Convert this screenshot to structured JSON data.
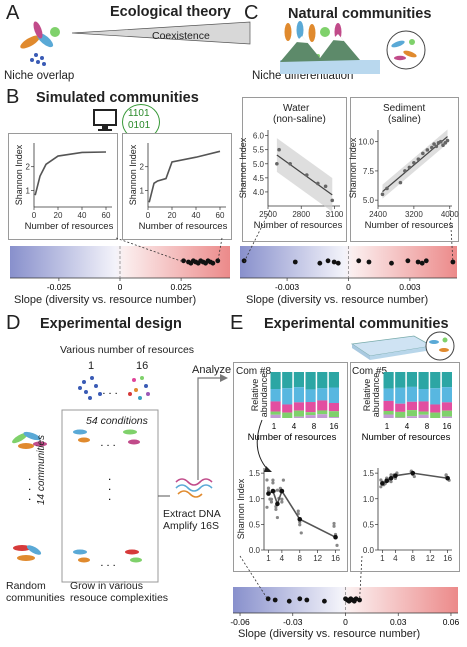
{
  "panelA": {
    "label": "A",
    "title": "Ecological theory",
    "left_caption": "Niche overlap",
    "middle_caption": "Coexistence",
    "right_caption": "Niche differentiation"
  },
  "panelB": {
    "label": "B",
    "title": "Simulated communities",
    "binary_line1": "1101",
    "binary_line2": "0101",
    "ylabel": "Shannon Index",
    "xlabel": "Number of resources",
    "slope_label": "Slope (diversity vs. resource number)"
  },
  "panelC": {
    "label": "C",
    "title": "Natural communities",
    "water_title1": "Water",
    "water_title2": "(non-saline)",
    "sediment_title1": "Sediment",
    "sediment_title2": "(saline)",
    "ylabel": "Shannon Index",
    "xlabel": "Number of resources",
    "slope_label": "Slope (diversity vs. resource number)"
  },
  "panelD": {
    "label": "D",
    "title": "Experimental design",
    "resources_caption": "Various number of resources",
    "res_min": "1",
    "res_max": "16",
    "conditions": "54 conditions",
    "communities": "14 communities",
    "dots": "...",
    "random1": "Random",
    "random2": "communities",
    "grow1": "Grow in various",
    "grow2": "resouce complexities",
    "extract1": "Extract DNA",
    "extract2": "Amplify 16S",
    "analyze": "Analyze"
  },
  "panelE": {
    "label": "E",
    "title": "Experimental communities",
    "com8": "Com #8",
    "com5": "Com #5",
    "rel_abund1": "Relative",
    "rel_abund2": "abundance",
    "xlabel": "Number of resources",
    "ylabel": "Shannon Index",
    "slope_label": "Slope (diversity vs. resource number)"
  },
  "chart_data": [
    {
      "id": "B-sim-1",
      "type": "line",
      "xlabel": "Number of resources",
      "ylabel": "Shannon Index",
      "x": [
        1,
        5,
        10,
        20,
        40,
        60
      ],
      "y": [
        0.8,
        1.6,
        2.1,
        2.45,
        2.6,
        2.62
      ],
      "xticks": [
        "0",
        "20",
        "40",
        "60"
      ],
      "yticks": [
        "1",
        "2"
      ],
      "xlim": [
        0,
        65
      ],
      "ylim": [
        0.3,
        3
      ]
    },
    {
      "id": "B-sim-2",
      "type": "line",
      "xlabel": "Number of resources",
      "ylabel": "Shannon Index",
      "x": [
        1,
        5,
        8,
        15,
        20,
        40,
        60
      ],
      "y": [
        0.5,
        1.3,
        1.4,
        1.5,
        2.2,
        2.4,
        2.65
      ],
      "xticks": [
        "0",
        "20",
        "40",
        "60"
      ],
      "yticks": [
        "1",
        "2"
      ],
      "xlim": [
        0,
        65
      ],
      "ylim": [
        0.3,
        3
      ]
    },
    {
      "id": "B-slope",
      "type": "scatter",
      "xlabel": "Slope (diversity vs. resource number)",
      "xticks": [
        "-0.025",
        "0",
        "0.025"
      ],
      "xlim": [
        -0.045,
        0.045
      ],
      "x": [
        0.026,
        0.028,
        0.029,
        0.03,
        0.031,
        0.032,
        0.033,
        0.034,
        0.035,
        0.036,
        0.037,
        0.038,
        0.04
      ]
    },
    {
      "id": "C-water",
      "type": "scatter",
      "title": "Water (non-saline)",
      "xlabel": "Number of resources",
      "ylabel": "Shannon Index",
      "x": [
        2580,
        2600,
        2700,
        2850,
        2950,
        3020,
        3080
      ],
      "y": [
        5.0,
        5.5,
        5.0,
        4.6,
        4.3,
        4.2,
        3.7
      ],
      "xticks": [
        "2500",
        "2800",
        "3100"
      ],
      "yticks": [
        "4.0",
        "4.5",
        "5.0",
        "5.5",
        "6.0"
      ],
      "xlim": [
        2500,
        3150
      ],
      "ylim": [
        3.5,
        6.2
      ]
    },
    {
      "id": "C-sediment",
      "type": "scatter",
      "title": "Sediment (saline)",
      "xlabel": "Number of resources",
      "ylabel": "Shannon Index",
      "x": [
        2500,
        2600,
        2900,
        3000,
        3100,
        3200,
        3300,
        3400,
        3500,
        3600,
        3650,
        3700,
        3750,
        3800,
        3850,
        3900,
        3950
      ],
      "y": [
        5.5,
        6.0,
        6.5,
        7.5,
        7.8,
        8.2,
        8.5,
        9.0,
        9.3,
        9.5,
        9.8,
        9.6,
        9.9,
        10.0,
        9.7,
        9.9,
        10.1
      ],
      "xticks": [
        "2400",
        "3200",
        "4000"
      ],
      "yticks": [
        "5.0",
        "7.5",
        "10.0"
      ],
      "xlim": [
        2400,
        4050
      ],
      "ylim": [
        4.5,
        11
      ]
    },
    {
      "id": "C-slope",
      "type": "scatter",
      "xlabel": "Slope (diversity vs. resource number)",
      "xticks": [
        "-0.003",
        "0",
        "0.003"
      ],
      "xlim": [
        -0.0053,
        0.0053
      ],
      "x": [
        -0.0051,
        -0.0026,
        -0.0014,
        -0.001,
        -0.0007,
        -0.0005,
        0.0005,
        0.001,
        0.0021,
        0.0029,
        0.0034,
        0.0036,
        0.0038,
        0.0051
      ]
    },
    {
      "id": "E-com8",
      "type": "line",
      "title": "Com #8",
      "xlabel": "Number of resources",
      "ylabel": "Shannon Index",
      "x": [
        1,
        2,
        3,
        4,
        8,
        16
      ],
      "y": [
        1.1,
        1.15,
        0.9,
        1.15,
        0.6,
        0.25
      ],
      "xticks": [
        "1",
        "4",
        "8",
        "12",
        "16"
      ],
      "yticks": [
        "0.0",
        "0.5",
        "1.0",
        "1.5"
      ],
      "xlim": [
        0,
        17
      ],
      "ylim": [
        0,
        1.6
      ]
    },
    {
      "id": "E-com5",
      "type": "line",
      "title": "Com #5",
      "xlabel": "Number of resources",
      "x": [
        1,
        2,
        3,
        4,
        8,
        16
      ],
      "y": [
        1.3,
        1.35,
        1.4,
        1.45,
        1.5,
        1.4
      ],
      "xticks": [
        "1",
        "4",
        "8",
        "12",
        "16"
      ],
      "yticks": [
        "0.0",
        "0.5",
        "1.0",
        "1.5"
      ],
      "xlim": [
        0,
        17
      ],
      "ylim": [
        0,
        1.6
      ]
    },
    {
      "id": "E-slope",
      "type": "scatter",
      "xlabel": "Slope (diversity vs. resource number)",
      "xticks": [
        "-0.06",
        "-0.03",
        "0",
        "0.03",
        "0.06"
      ],
      "xlim": [
        -0.064,
        0.064
      ],
      "x": [
        -0.044,
        -0.04,
        -0.032,
        -0.026,
        -0.022,
        -0.012,
        0.0,
        0.001,
        0.002,
        0.003,
        0.004,
        0.005,
        0.006,
        0.008
      ]
    }
  ]
}
